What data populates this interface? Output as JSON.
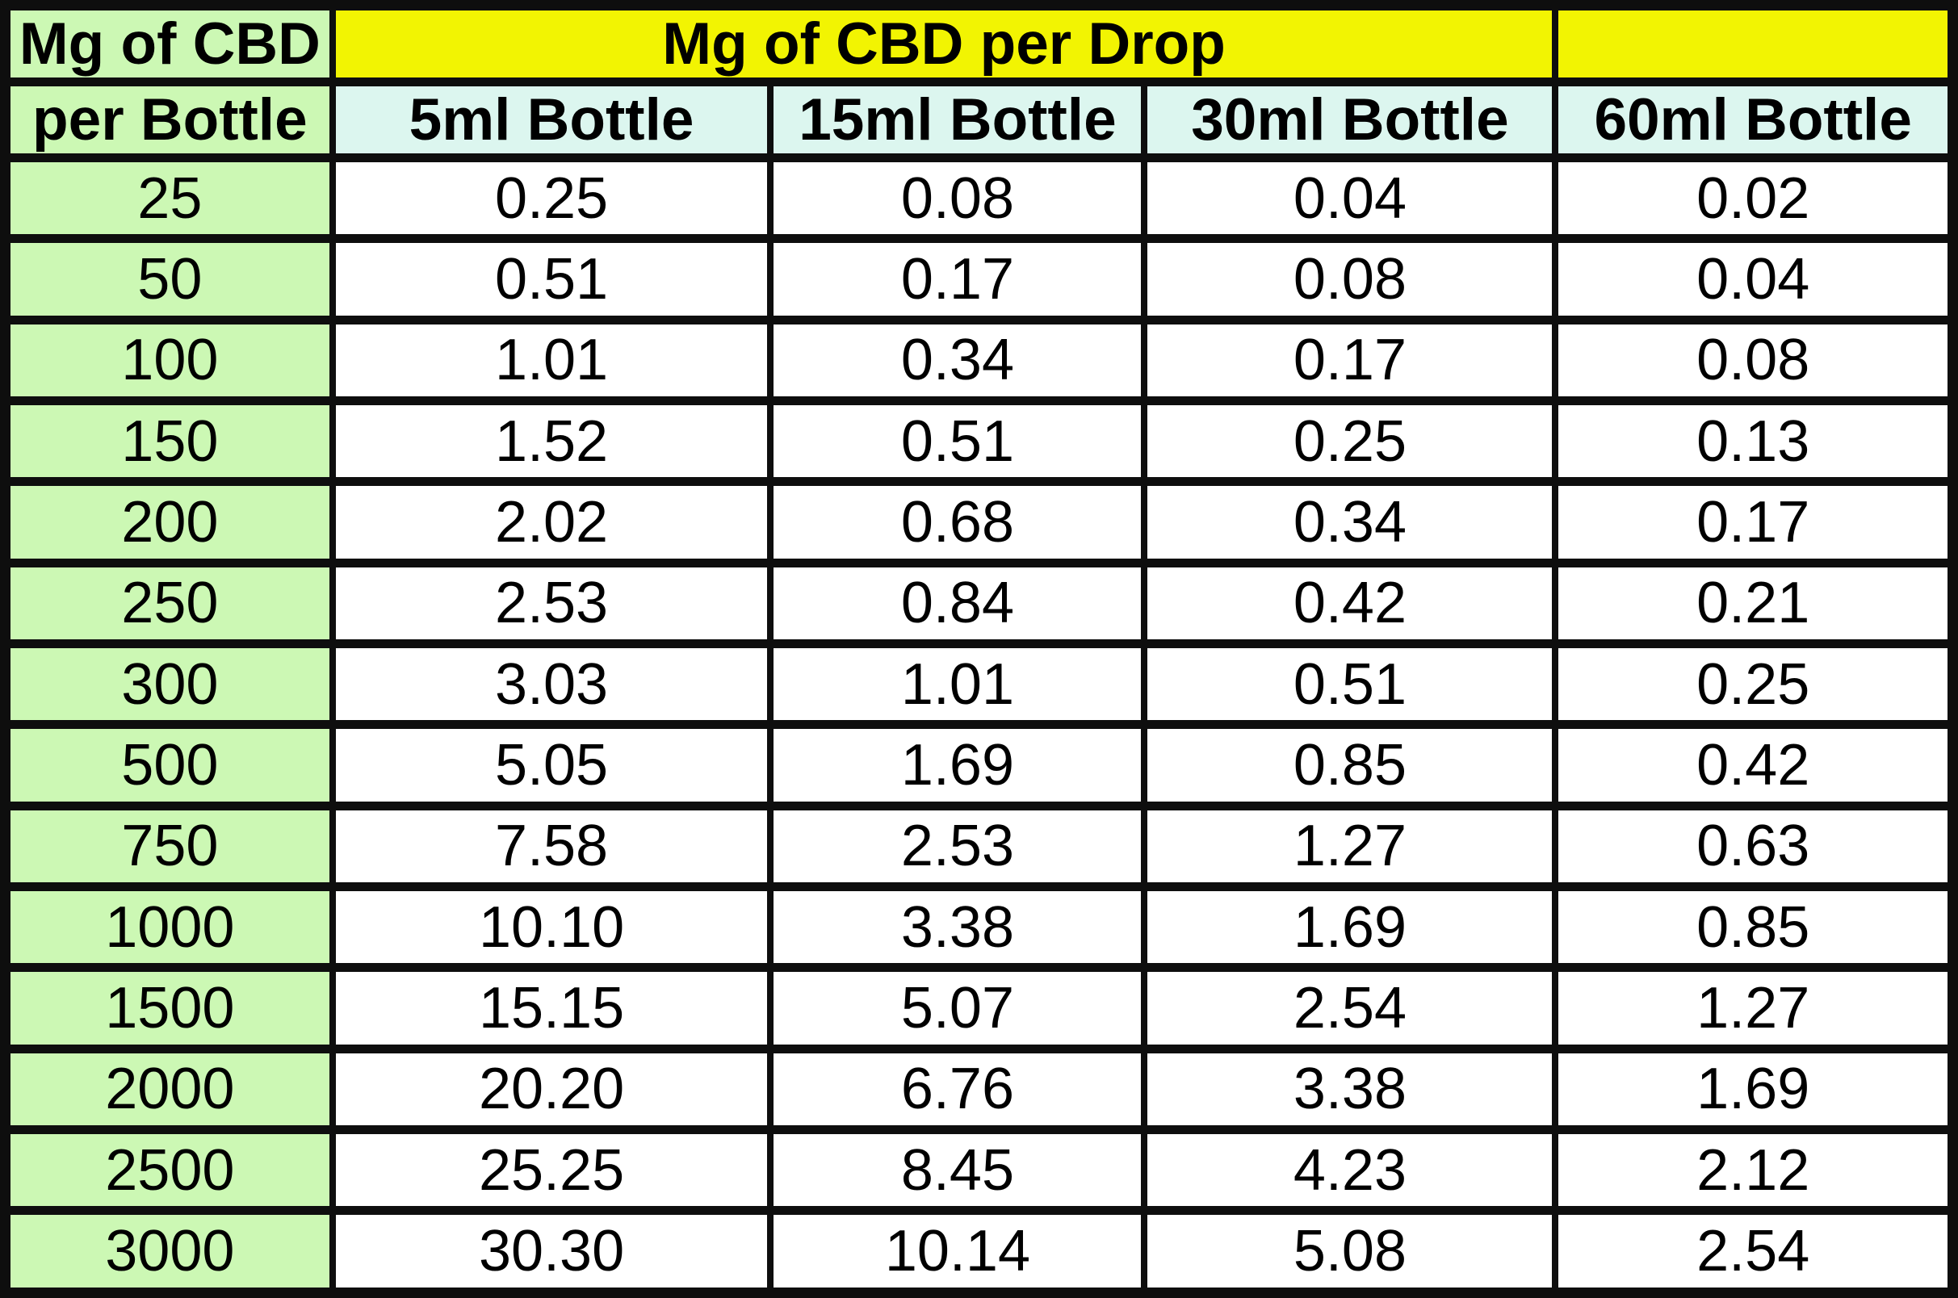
{
  "table": {
    "corner_header": {
      "line1": "Mg of CBD",
      "line2": "per Bottle"
    },
    "span_header": "Mg of CBD per Drop",
    "column_headers": [
      "5ml Bottle",
      "15ml Bottle",
      "30ml Bottle",
      "60ml Bottle"
    ],
    "rows": [
      {
        "mg": "25",
        "values": [
          "0.25",
          "0.08",
          "0.04",
          "0.02"
        ]
      },
      {
        "mg": "50",
        "values": [
          "0.51",
          "0.17",
          "0.08",
          "0.04"
        ]
      },
      {
        "mg": "100",
        "values": [
          "1.01",
          "0.34",
          "0.17",
          "0.08"
        ]
      },
      {
        "mg": "150",
        "values": [
          "1.52",
          "0.51",
          "0.25",
          "0.13"
        ]
      },
      {
        "mg": "200",
        "values": [
          "2.02",
          "0.68",
          "0.34",
          "0.17"
        ]
      },
      {
        "mg": "250",
        "values": [
          "2.53",
          "0.84",
          "0.42",
          "0.21"
        ]
      },
      {
        "mg": "300",
        "values": [
          "3.03",
          "1.01",
          "0.51",
          "0.25"
        ]
      },
      {
        "mg": "500",
        "values": [
          "5.05",
          "1.69",
          "0.85",
          "0.42"
        ]
      },
      {
        "mg": "750",
        "values": [
          "7.58",
          "2.53",
          "1.27",
          "0.63"
        ]
      },
      {
        "mg": "1000",
        "values": [
          "10.10",
          "3.38",
          "1.69",
          "0.85"
        ]
      },
      {
        "mg": "1500",
        "values": [
          "15.15",
          "5.07",
          "2.54",
          "1.27"
        ]
      },
      {
        "mg": "2000",
        "values": [
          "20.20",
          "6.76",
          "3.38",
          "1.69"
        ]
      },
      {
        "mg": "2500",
        "values": [
          "25.25",
          "8.45",
          "4.23",
          "2.12"
        ]
      },
      {
        "mg": "3000",
        "values": [
          "30.30",
          "10.14",
          "5.08",
          "2.54"
        ]
      }
    ]
  },
  "colors": {
    "green": "#ccf8b4",
    "yellow": "#f2f402",
    "cyan": "#dcf6ef",
    "border": "#0e0e0e"
  },
  "chart_data": {
    "type": "table",
    "title": "Mg of CBD per Drop",
    "row_axis_label": "Mg of CBD per Bottle",
    "columns": [
      "5ml Bottle",
      "15ml Bottle",
      "30ml Bottle",
      "60ml Bottle"
    ],
    "rows": [
      {
        "mg_per_bottle": 25,
        "mg_per_drop": [
          0.25,
          0.08,
          0.04,
          0.02
        ]
      },
      {
        "mg_per_bottle": 50,
        "mg_per_drop": [
          0.51,
          0.17,
          0.08,
          0.04
        ]
      },
      {
        "mg_per_bottle": 100,
        "mg_per_drop": [
          1.01,
          0.34,
          0.17,
          0.08
        ]
      },
      {
        "mg_per_bottle": 150,
        "mg_per_drop": [
          1.52,
          0.51,
          0.25,
          0.13
        ]
      },
      {
        "mg_per_bottle": 200,
        "mg_per_drop": [
          2.02,
          0.68,
          0.34,
          0.17
        ]
      },
      {
        "mg_per_bottle": 250,
        "mg_per_drop": [
          2.53,
          0.84,
          0.42,
          0.21
        ]
      },
      {
        "mg_per_bottle": 300,
        "mg_per_drop": [
          3.03,
          1.01,
          0.51,
          0.25
        ]
      },
      {
        "mg_per_bottle": 500,
        "mg_per_drop": [
          5.05,
          1.69,
          0.85,
          0.42
        ]
      },
      {
        "mg_per_bottle": 750,
        "mg_per_drop": [
          7.58,
          2.53,
          1.27,
          0.63
        ]
      },
      {
        "mg_per_bottle": 1000,
        "mg_per_drop": [
          10.1,
          3.38,
          1.69,
          0.85
        ]
      },
      {
        "mg_per_bottle": 1500,
        "mg_per_drop": [
          15.15,
          5.07,
          2.54,
          1.27
        ]
      },
      {
        "mg_per_bottle": 2000,
        "mg_per_drop": [
          20.2,
          6.76,
          3.38,
          1.69
        ]
      },
      {
        "mg_per_bottle": 2500,
        "mg_per_drop": [
          25.25,
          8.45,
          4.23,
          2.12
        ]
      },
      {
        "mg_per_bottle": 3000,
        "mg_per_drop": [
          30.3,
          10.14,
          5.08,
          2.54
        ]
      }
    ]
  }
}
